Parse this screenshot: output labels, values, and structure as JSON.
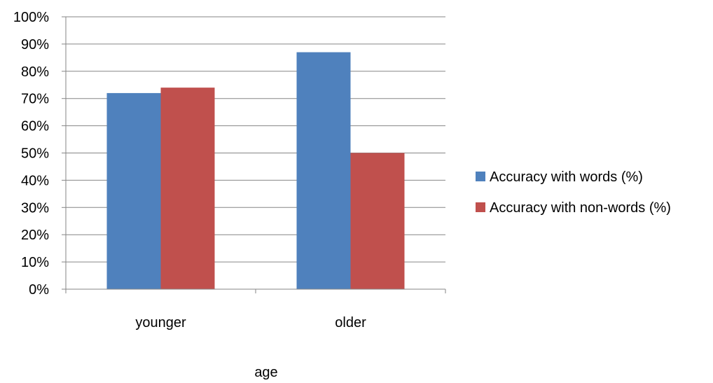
{
  "chart_data": {
    "type": "bar",
    "categories": [
      "younger",
      "older"
    ],
    "series": [
      {
        "name": "Accuracy with words (%)",
        "values": [
          0.72,
          0.87
        ],
        "color": "#4F81BD"
      },
      {
        "name": "Accuracy with non-words (%)",
        "values": [
          0.74,
          0.5
        ],
        "color": "#C0504D"
      }
    ],
    "title": "",
    "xlabel": "age",
    "ylabel": "",
    "ylim": [
      0,
      1
    ],
    "yticks": [
      "0%",
      "10%",
      "20%",
      "30%",
      "40%",
      "50%",
      "60%",
      "70%",
      "80%",
      "90%",
      "100%"
    ],
    "grid": true,
    "legend_position": "right"
  }
}
